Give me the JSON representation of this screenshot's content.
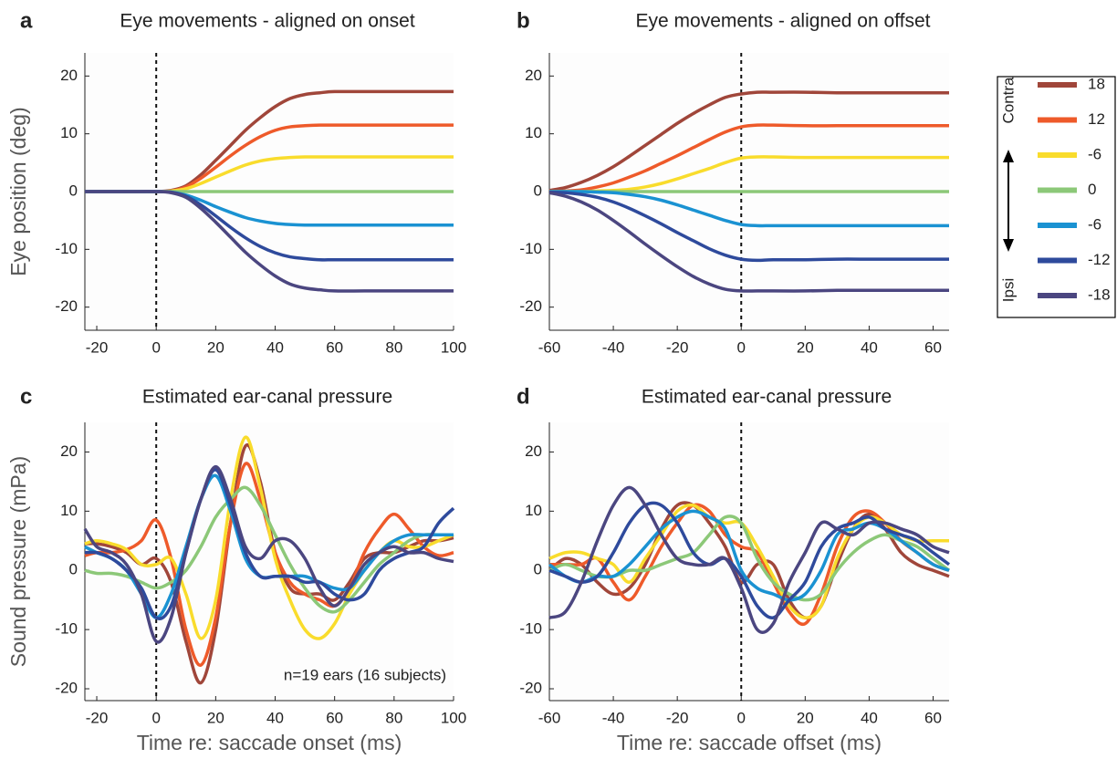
{
  "chart_data": [
    {
      "type": "line",
      "panel_label": "a",
      "title": "Eye movements - aligned on onset",
      "y_label": "Eye position (deg)",
      "legend": "right",
      "legend_arrow_labels": [
        "Contra",
        "Ipsi"
      ],
      "vline": 0,
      "x": [
        -24,
        -20,
        -10,
        0,
        5,
        10,
        15,
        20,
        25,
        30,
        35,
        40,
        45,
        50,
        55,
        60,
        70,
        80,
        90,
        100
      ],
      "xlim": [
        -24,
        100
      ],
      "xticks": [
        -20,
        0,
        20,
        40,
        60,
        80,
        100
      ],
      "ylim": [
        -24,
        24
      ],
      "yticks": [
        -20,
        -10,
        0,
        10,
        20
      ],
      "series": [
        {
          "name": "18",
          "color": "#a0463a",
          "values": [
            0,
            0,
            0,
            0,
            0.2,
            1.0,
            2.9,
            5.4,
            8.0,
            10.6,
            12.8,
            14.7,
            16.1,
            16.8,
            17.1,
            17.3,
            17.3,
            17.3,
            17.3,
            17.3
          ]
        },
        {
          "name": "12",
          "color": "#ee5a2a",
          "values": [
            0,
            0,
            0,
            0,
            0.1,
            0.8,
            2.3,
            4.2,
            6.2,
            8.0,
            9.5,
            10.6,
            11.2,
            11.4,
            11.5,
            11.5,
            11.5,
            11.5,
            11.5,
            11.5
          ]
        },
        {
          "name": "-6",
          "color": "#f9dc2c",
          "values": [
            0,
            0,
            0,
            0,
            0.1,
            0.5,
            1.4,
            2.5,
            3.6,
            4.6,
            5.3,
            5.7,
            5.9,
            6.0,
            6.0,
            6.0,
            6.0,
            6.0,
            6.0,
            6.0
          ]
        },
        {
          "name": "0",
          "color": "#8cc878",
          "values": [
            0,
            0,
            0,
            0,
            0,
            0,
            0,
            0,
            0,
            0,
            0,
            0,
            0,
            0,
            0,
            0,
            0,
            0,
            0,
            0
          ]
        },
        {
          "name": "-6",
          "color": "#1a92d2",
          "values": [
            0,
            0,
            0,
            0,
            -0.1,
            -0.6,
            -1.5,
            -2.6,
            -3.6,
            -4.5,
            -5.1,
            -5.5,
            -5.7,
            -5.8,
            -5.8,
            -5.8,
            -5.8,
            -5.8,
            -5.8,
            -5.8
          ]
        },
        {
          "name": "-12",
          "color": "#2e4a9c",
          "values": [
            0,
            0,
            0,
            0,
            -0.1,
            -0.8,
            -2.3,
            -4.2,
            -6.2,
            -8.0,
            -9.5,
            -10.6,
            -11.3,
            -11.6,
            -11.8,
            -11.8,
            -11.8,
            -11.8,
            -11.8,
            -11.8
          ]
        },
        {
          "name": "-18",
          "color": "#4b4680",
          "values": [
            0,
            0,
            0,
            0,
            -0.2,
            -1.0,
            -2.9,
            -5.3,
            -7.9,
            -10.5,
            -12.7,
            -14.6,
            -16.0,
            -16.7,
            -17.0,
            -17.2,
            -17.2,
            -17.2,
            -17.2,
            -17.2
          ]
        }
      ]
    },
    {
      "type": "line",
      "panel_label": "b",
      "title": "Eye movements - aligned on offset",
      "vline": 0,
      "x": [
        -60,
        -55,
        -50,
        -45,
        -40,
        -35,
        -30,
        -25,
        -20,
        -15,
        -10,
        -5,
        0,
        5,
        10,
        20,
        30,
        40,
        50,
        65
      ],
      "xlim": [
        -60,
        65
      ],
      "xticks": [
        -60,
        -40,
        -20,
        0,
        20,
        40,
        60
      ],
      "ylim": [
        -24,
        24
      ],
      "yticks": [
        -20,
        -10,
        0,
        10,
        20
      ],
      "series": [
        {
          "name": "18",
          "color": "#a0463a",
          "values": [
            0.2,
            0.7,
            1.6,
            2.8,
            4.3,
            6.1,
            8.0,
            9.9,
            11.8,
            13.5,
            15.0,
            16.3,
            16.9,
            17.2,
            17.2,
            17.2,
            17.1,
            17.1,
            17.1,
            17.1
          ]
        },
        {
          "name": "12",
          "color": "#ee5a2a",
          "values": [
            0,
            0.1,
            0.3,
            0.8,
            1.5,
            2.5,
            3.6,
            4.9,
            6.2,
            7.6,
            9.0,
            10.3,
            11.2,
            11.5,
            11.5,
            11.4,
            11.4,
            11.4,
            11.4,
            11.4
          ]
        },
        {
          "name": "-6",
          "color": "#f9dc2c",
          "values": [
            0,
            0,
            0,
            0.1,
            0.2,
            0.4,
            0.8,
            1.4,
            2.2,
            3.1,
            4.0,
            5.0,
            5.8,
            6.0,
            6.0,
            5.9,
            5.9,
            5.9,
            5.9,
            5.9
          ]
        },
        {
          "name": "0",
          "color": "#8cc878",
          "values": [
            0,
            0,
            0,
            0,
            0,
            0,
            0,
            0,
            0,
            0,
            0,
            0,
            0,
            0,
            0,
            0,
            0,
            0,
            0,
            0
          ]
        },
        {
          "name": "-6",
          "color": "#1a92d2",
          "values": [
            0,
            0,
            0,
            -0.1,
            -0.2,
            -0.5,
            -0.9,
            -1.5,
            -2.3,
            -3.2,
            -4.1,
            -5.0,
            -5.7,
            -5.9,
            -5.9,
            -5.9,
            -5.9,
            -5.9,
            -5.9,
            -5.9
          ]
        },
        {
          "name": "-12",
          "color": "#2e4a9c",
          "values": [
            -0.1,
            -0.2,
            -0.5,
            -1.0,
            -1.8,
            -2.9,
            -4.2,
            -5.6,
            -7.1,
            -8.5,
            -9.9,
            -11.0,
            -11.7,
            -11.9,
            -11.8,
            -11.8,
            -11.7,
            -11.7,
            -11.7,
            -11.7
          ]
        },
        {
          "name": "-18",
          "color": "#4b4680",
          "values": [
            -0.2,
            -0.8,
            -1.8,
            -3.2,
            -5.0,
            -7.0,
            -9.1,
            -11.1,
            -13.0,
            -14.7,
            -16.0,
            -16.9,
            -17.2,
            -17.2,
            -17.2,
            -17.2,
            -17.1,
            -17.1,
            -17.1,
            -17.1
          ]
        }
      ]
    },
    {
      "type": "line",
      "panel_label": "c",
      "title": "Estimated ear-canal pressure",
      "y_label": "Sound pressure (mPa)",
      "x_label": "Time re: saccade onset (ms)",
      "annotation": "n=19 ears (16 subjects)",
      "vline": 0,
      "x": [
        -24,
        -20,
        -15,
        -10,
        -5,
        0,
        5,
        10,
        15,
        20,
        25,
        30,
        35,
        40,
        45,
        50,
        55,
        60,
        65,
        70,
        75,
        80,
        85,
        90,
        95,
        100
      ],
      "xlim": [
        -24,
        100
      ],
      "xticks": [
        -20,
        0,
        20,
        40,
        60,
        80,
        100
      ],
      "ylim": [
        -22,
        25
      ],
      "yticks": [
        -20,
        -10,
        0,
        10,
        20
      ],
      "series": [
        {
          "name": "18",
          "color": "#a0463a",
          "values": [
            4.5,
            4.5,
            4.0,
            3.0,
            1.0,
            2.0,
            -2,
            -12,
            -19,
            -10,
            8,
            21,
            15,
            3,
            -3,
            -4,
            -4,
            -5,
            -2,
            2,
            3,
            3,
            4,
            5,
            5,
            5.5
          ]
        },
        {
          "name": "12",
          "color": "#ee5a2a",
          "values": [
            2.5,
            3,
            3,
            3.5,
            5,
            8.5,
            2,
            -10,
            -16,
            -8,
            8,
            18,
            12,
            3,
            -2,
            -4,
            -5,
            -6,
            -3,
            3,
            7,
            9.5,
            7,
            4,
            2.5,
            3
          ]
        },
        {
          "name": "-6",
          "color": "#f9dc2c",
          "values": [
            4.5,
            5,
            4.5,
            3.5,
            1,
            1,
            2,
            -4,
            -11.5,
            -5,
            12,
            22.5,
            14,
            2,
            -5,
            -10,
            -11.5,
            -9,
            -4,
            0,
            3,
            5,
            4,
            4,
            5,
            6
          ]
        },
        {
          "name": "0",
          "color": "#8cc878",
          "values": [
            0,
            -0.5,
            -0.5,
            -1,
            -2,
            -3,
            -2,
            0,
            4,
            9,
            12,
            14,
            11,
            6,
            1,
            -3,
            -6,
            -7,
            -5,
            -2,
            1,
            3,
            5,
            6,
            6,
            6
          ]
        },
        {
          "name": "-6",
          "color": "#1a92d2",
          "values": [
            4,
            3,
            2,
            0,
            -4,
            -8,
            -4,
            4,
            12,
            16,
            10,
            2,
            -1,
            -1,
            -1,
            -1,
            -2,
            -3,
            -3,
            0,
            3,
            5,
            6,
            6,
            6,
            6
          ]
        },
        {
          "name": "-12",
          "color": "#2e4a9c",
          "values": [
            3,
            3,
            2,
            0,
            -3,
            -8,
            -6,
            3,
            12,
            17,
            11,
            3,
            -1,
            -1,
            -1,
            -2,
            -2,
            -4,
            -5,
            -4,
            0,
            2,
            3,
            4,
            8,
            10.5
          ]
        },
        {
          "name": "-18",
          "color": "#4b4680",
          "values": [
            7,
            4,
            3,
            1,
            -4,
            -12,
            -8,
            3,
            12,
            17.5,
            12,
            4,
            2,
            5,
            5,
            2,
            -3,
            -6,
            -3,
            1,
            3,
            4,
            3,
            3,
            2,
            1.5
          ]
        }
      ]
    },
    {
      "type": "line",
      "panel_label": "d",
      "title": "Estimated ear-canal pressure",
      "x_label": "Time re: saccade offset (ms)",
      "vline": 0,
      "x": [
        -60,
        -55,
        -50,
        -45,
        -40,
        -35,
        -30,
        -25,
        -20,
        -15,
        -10,
        -5,
        0,
        5,
        10,
        15,
        20,
        25,
        30,
        35,
        40,
        45,
        50,
        55,
        60,
        65
      ],
      "xlim": [
        -60,
        65
      ],
      "xticks": [
        -60,
        -40,
        -20,
        0,
        20,
        40,
        60
      ],
      "ylim": [
        -22,
        25
      ],
      "yticks": [
        -20,
        -10,
        0,
        10,
        20
      ],
      "series": [
        {
          "name": "18",
          "color": "#a0463a",
          "values": [
            0,
            2,
            1,
            -2,
            -4,
            -3,
            1,
            7,
            11,
            11,
            8,
            4,
            -2,
            1,
            1,
            -5,
            -8,
            -6,
            1,
            7,
            9.5,
            7,
            3,
            1,
            0,
            -1
          ]
        },
        {
          "name": "12",
          "color": "#ee5a2a",
          "values": [
            1,
            1,
            1,
            2,
            -2,
            -5,
            -1,
            4,
            8,
            11,
            10,
            6,
            4,
            3,
            -2,
            -7,
            -9,
            -4,
            4,
            9,
            10,
            8,
            5,
            3,
            1,
            0
          ]
        },
        {
          "name": "-6",
          "color": "#f9dc2c",
          "values": [
            2,
            3,
            3,
            2,
            1,
            -2,
            2,
            6,
            10,
            11,
            9,
            8,
            8,
            4,
            -1,
            -6,
            -8,
            -6,
            2,
            7,
            9,
            8,
            6,
            5,
            5,
            5
          ]
        },
        {
          "name": "0",
          "color": "#8cc878",
          "values": [
            0,
            1,
            0,
            -1,
            -1,
            0,
            0,
            1,
            2,
            3,
            6,
            9,
            8,
            2,
            -2,
            -4,
            -5,
            -4,
            0,
            3,
            5,
            6,
            5,
            4,
            2,
            0
          ]
        },
        {
          "name": "-6",
          "color": "#1a92d2",
          "values": [
            1,
            -1,
            -2,
            -1,
            -1,
            1,
            4,
            7,
            9,
            10,
            9,
            7,
            0,
            -3,
            -4,
            -5,
            -4,
            0,
            6,
            7,
            8,
            7,
            5,
            3,
            1,
            0
          ]
        },
        {
          "name": "-12",
          "color": "#2e4a9c",
          "values": [
            0,
            -1,
            -2,
            -1,
            3,
            8,
            11,
            11,
            8,
            3,
            1,
            2,
            -1,
            -6,
            -8,
            -5,
            -2,
            4,
            7,
            8,
            9,
            7,
            6,
            5,
            3,
            1
          ]
        },
        {
          "name": "-18",
          "color": "#4b4680",
          "values": [
            -8,
            -7,
            -2,
            5,
            11,
            14,
            11,
            6,
            2,
            1,
            1,
            2,
            -3,
            -10,
            -9,
            -2,
            3,
            8,
            7,
            6,
            8,
            8,
            7,
            6,
            4,
            3
          ]
        }
      ]
    }
  ]
}
